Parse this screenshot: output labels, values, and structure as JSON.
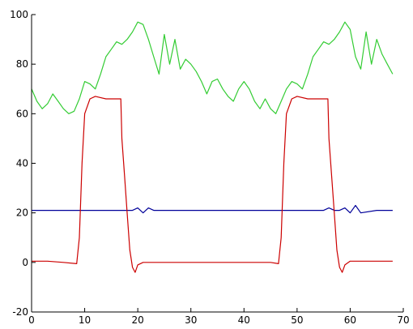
{
  "chart_data": {
    "type": "line",
    "title": "",
    "xlabel": "",
    "ylabel": "",
    "xlim": [
      0,
      70
    ],
    "ylim": [
      -20,
      100
    ],
    "xticks": [
      0,
      10,
      20,
      30,
      40,
      50,
      60,
      70
    ],
    "yticks": [
      -20,
      0,
      20,
      40,
      60,
      80,
      100
    ],
    "grid": false,
    "legend": "none",
    "series": [
      {
        "color": "#33cc33",
        "x": [
          0,
          1,
          2,
          3,
          4,
          5,
          6,
          7,
          8,
          9,
          10,
          11,
          12,
          13,
          14,
          15,
          16,
          17,
          18,
          19,
          20,
          21,
          22,
          23,
          24,
          25,
          26,
          27,
          28,
          29,
          30,
          31,
          32,
          33,
          34,
          35,
          36,
          37,
          38,
          39,
          40,
          41,
          42,
          43,
          44,
          45,
          46,
          47,
          48,
          49,
          50,
          51,
          52,
          53,
          54,
          55,
          56,
          57,
          58,
          59,
          60,
          61,
          62,
          63,
          64,
          65,
          66,
          67,
          68
        ],
        "y": [
          70,
          65,
          62,
          64,
          68,
          65,
          62,
          60,
          61,
          66,
          73,
          72,
          70,
          76,
          83,
          86,
          89,
          88,
          90,
          93,
          97,
          96,
          90,
          83,
          76,
          92,
          80,
          90,
          78,
          82,
          80,
          77,
          73,
          68,
          73,
          74,
          70,
          67,
          65,
          70,
          73,
          70,
          65,
          62,
          66,
          62,
          60,
          65,
          70,
          73,
          72,
          70,
          76,
          83,
          86,
          89,
          88,
          90,
          93,
          97,
          94,
          83,
          78,
          93,
          80,
          90,
          84,
          80,
          76
        ]
      },
      {
        "color": "#000099",
        "x": [
          0,
          5,
          10,
          15,
          19,
          20,
          21,
          22,
          23,
          24,
          25,
          30,
          35,
          40,
          45,
          50,
          55,
          56,
          57,
          58,
          59,
          60,
          61,
          62,
          65,
          68
        ],
        "y": [
          21,
          21,
          21,
          21,
          21,
          22,
          20,
          22,
          21,
          21,
          21,
          21,
          21,
          21,
          21,
          21,
          21,
          22,
          21,
          21,
          22,
          20,
          23,
          20,
          21,
          21
        ]
      },
      {
        "color": "#cc0000",
        "x": [
          0,
          3,
          6,
          8.5,
          9,
          9.5,
          10,
          11,
          12,
          14,
          16,
          16.8,
          17,
          17.5,
          18,
          18.5,
          19,
          19.5,
          20,
          21,
          25,
          30,
          35,
          40,
          45,
          46.5,
          47,
          47.5,
          48,
          49,
          50,
          52,
          54,
          55.8,
          56,
          56.5,
          57,
          57.5,
          58,
          58.5,
          59,
          60,
          63,
          66,
          68
        ],
        "y": [
          0.5,
          0.5,
          0,
          -0.5,
          10,
          40,
          60,
          66,
          67,
          66,
          66,
          66,
          50,
          35,
          20,
          5,
          -2,
          -4,
          -1,
          0,
          0,
          0,
          0,
          0,
          0,
          -0.5,
          10,
          40,
          60,
          66,
          67,
          66,
          66,
          66,
          50,
          35,
          20,
          5,
          -2,
          -4,
          -1,
          0.5,
          0.5,
          0.5,
          0.5
        ]
      }
    ]
  }
}
